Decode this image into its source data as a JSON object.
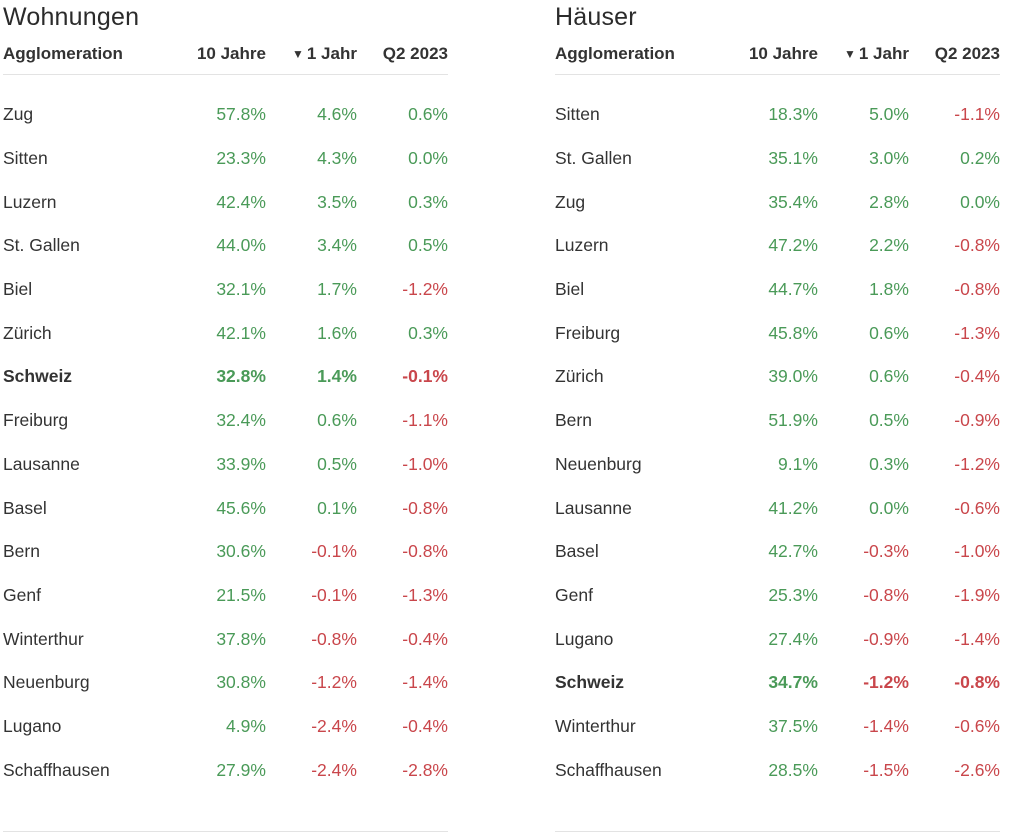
{
  "chart_data": [
    {
      "type": "table",
      "title": "Wohnungen",
      "columns": [
        "Agglomeration",
        "10 Jahre",
        "1 Jahr",
        "Q2 2023"
      ],
      "sorted_column": "1 Jahr",
      "rows": [
        {
          "name": "Zug",
          "v10": "57.8%",
          "v1": "4.6%",
          "q2": "0.6%",
          "bold": false
        },
        {
          "name": "Sitten",
          "v10": "23.3%",
          "v1": "4.3%",
          "q2": "0.0%",
          "bold": false
        },
        {
          "name": "Luzern",
          "v10": "42.4%",
          "v1": "3.5%",
          "q2": "0.3%",
          "bold": false
        },
        {
          "name": "St. Gallen",
          "v10": "44.0%",
          "v1": "3.4%",
          "q2": "0.5%",
          "bold": false
        },
        {
          "name": "Biel",
          "v10": "32.1%",
          "v1": "1.7%",
          "q2": "-1.2%",
          "bold": false
        },
        {
          "name": "Zürich",
          "v10": "42.1%",
          "v1": "1.6%",
          "q2": "0.3%",
          "bold": false
        },
        {
          "name": "Schweiz",
          "v10": "32.8%",
          "v1": "1.4%",
          "q2": "-0.1%",
          "bold": true
        },
        {
          "name": "Freiburg",
          "v10": "32.4%",
          "v1": "0.6%",
          "q2": "-1.1%",
          "bold": false
        },
        {
          "name": "Lausanne",
          "v10": "33.9%",
          "v1": "0.5%",
          "q2": "-1.0%",
          "bold": false
        },
        {
          "name": "Basel",
          "v10": "45.6%",
          "v1": "0.1%",
          "q2": "-0.8%",
          "bold": false
        },
        {
          "name": "Bern",
          "v10": "30.6%",
          "v1": "-0.1%",
          "q2": "-0.8%",
          "bold": false
        },
        {
          "name": "Genf",
          "v10": "21.5%",
          "v1": "-0.1%",
          "q2": "-1.3%",
          "bold": false
        },
        {
          "name": "Winterthur",
          "v10": "37.8%",
          "v1": "-0.8%",
          "q2": "-0.4%",
          "bold": false
        },
        {
          "name": "Neuenburg",
          "v10": "30.8%",
          "v1": "-1.2%",
          "q2": "-1.4%",
          "bold": false
        },
        {
          "name": "Lugano",
          "v10": "4.9%",
          "v1": "-2.4%",
          "q2": "-0.4%",
          "bold": false
        },
        {
          "name": "Schaffhausen",
          "v10": "27.9%",
          "v1": "-2.4%",
          "q2": "-2.8%",
          "bold": false
        }
      ]
    },
    {
      "type": "table",
      "title": "Häuser",
      "columns": [
        "Agglomeration",
        "10 Jahre",
        "1 Jahr",
        "Q2 2023"
      ],
      "sorted_column": "1 Jahr",
      "rows": [
        {
          "name": "Sitten",
          "v10": "18.3%",
          "v1": "5.0%",
          "q2": "-1.1%",
          "bold": false
        },
        {
          "name": "St. Gallen",
          "v10": "35.1%",
          "v1": "3.0%",
          "q2": "0.2%",
          "bold": false
        },
        {
          "name": "Zug",
          "v10": "35.4%",
          "v1": "2.8%",
          "q2": "0.0%",
          "bold": false
        },
        {
          "name": "Luzern",
          "v10": "47.2%",
          "v1": "2.2%",
          "q2": "-0.8%",
          "bold": false
        },
        {
          "name": "Biel",
          "v10": "44.7%",
          "v1": "1.8%",
          "q2": "-0.8%",
          "bold": false
        },
        {
          "name": "Freiburg",
          "v10": "45.8%",
          "v1": "0.6%",
          "q2": "-1.3%",
          "bold": false
        },
        {
          "name": "Zürich",
          "v10": "39.0%",
          "v1": "0.6%",
          "q2": "-0.4%",
          "bold": false
        },
        {
          "name": "Bern",
          "v10": "51.9%",
          "v1": "0.5%",
          "q2": "-0.9%",
          "bold": false
        },
        {
          "name": "Neuenburg",
          "v10": "9.1%",
          "v1": "0.3%",
          "q2": "-1.2%",
          "bold": false
        },
        {
          "name": "Lausanne",
          "v10": "41.2%",
          "v1": "0.0%",
          "q2": "-0.6%",
          "bold": false
        },
        {
          "name": "Basel",
          "v10": "42.7%",
          "v1": "-0.3%",
          "q2": "-1.0%",
          "bold": false
        },
        {
          "name": "Genf",
          "v10": "25.3%",
          "v1": "-0.8%",
          "q2": "-1.9%",
          "bold": false
        },
        {
          "name": "Lugano",
          "v10": "27.4%",
          "v1": "-0.9%",
          "q2": "-1.4%",
          "bold": false
        },
        {
          "name": "Schweiz",
          "v10": "34.7%",
          "v1": "-1.2%",
          "q2": "-0.8%",
          "bold": true
        },
        {
          "name": "Winterthur",
          "v10": "37.5%",
          "v1": "-1.4%",
          "q2": "-0.6%",
          "bold": false
        },
        {
          "name": "Schaffhausen",
          "v10": "28.5%",
          "v1": "-1.5%",
          "q2": "-2.6%",
          "bold": false
        }
      ]
    }
  ],
  "colors": {
    "positive": "#4a9a58",
    "negative": "#c9464b",
    "text": "#333333",
    "rule": "#e3e3e3"
  },
  "icons": {
    "sort": "sort-down-icon"
  }
}
